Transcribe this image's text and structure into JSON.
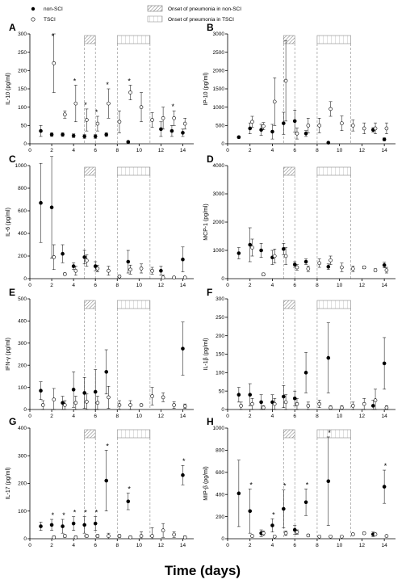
{
  "legend": {
    "regions": [
      "Onset of pneumonia in non-SCI",
      "Onset of pneumonia in TSCI"
    ]
  },
  "xlabel": "Time (days)",
  "chart_data": [
    {
      "type": "scatter",
      "panel": "A",
      "ylabel": "IL-10 (pg/ml)",
      "xlim": [
        0,
        15
      ],
      "xticks": [
        0,
        2,
        4,
        6,
        8,
        10,
        12,
        14
      ],
      "ylim": [
        0,
        300
      ],
      "yticks": [
        0,
        50,
        100,
        150,
        200,
        250,
        300
      ],
      "onset": [
        [
          5,
          6
        ],
        [
          8,
          11
        ]
      ],
      "significance": {
        "label": "*",
        "x": [
          2,
          4,
          5,
          6,
          7,
          9,
          13
        ]
      },
      "series": [
        {
          "name": "non-SCI",
          "color": "#000000",
          "filled": true,
          "x": [
            1,
            2,
            3,
            4,
            5,
            6,
            7,
            9,
            12,
            13,
            14
          ],
          "values": [
            35,
            25,
            25,
            22,
            20,
            20,
            25,
            5,
            40,
            35,
            30
          ],
          "errors": [
            15,
            5,
            5,
            5,
            5,
            5,
            5,
            3,
            20,
            15,
            10
          ]
        },
        {
          "name": "TSCI",
          "color": "#000000",
          "filled": false,
          "x": [
            2.2,
            3.2,
            4.2,
            5.2,
            6.2,
            7.2,
            8.2,
            9.2,
            10.2,
            11.2,
            12.2,
            13.2,
            14.2
          ],
          "values": [
            220,
            80,
            110,
            65,
            55,
            110,
            60,
            140,
            100,
            65,
            70,
            70,
            55
          ],
          "errors": [
            80,
            10,
            50,
            30,
            20,
            40,
            30,
            20,
            40,
            20,
            30,
            20,
            15
          ]
        }
      ]
    },
    {
      "type": "scatter",
      "panel": "B",
      "ylabel": "IP-10 (pg/ml)",
      "xlim": [
        0,
        15
      ],
      "xticks": [
        0,
        2,
        4,
        6,
        8,
        10,
        12,
        14
      ],
      "ylim": [
        0,
        3000
      ],
      "yticks": [
        0,
        500,
        1000,
        1500,
        2000,
        2500,
        3000
      ],
      "onset": [
        [
          5,
          6
        ],
        [
          8,
          11
        ]
      ],
      "significance": {
        "label": "*",
        "x": []
      },
      "series": [
        {
          "color": "#000000",
          "filled": true,
          "x": [
            1,
            2,
            3,
            4,
            5,
            6,
            7,
            9,
            13,
            14
          ],
          "values": [
            180,
            420,
            380,
            330,
            560,
            620,
            280,
            30,
            380,
            120
          ],
          "errors": [
            30,
            150,
            150,
            200,
            300,
            300,
            80,
            10,
            60,
            40
          ]
        },
        {
          "color": "#000000",
          "filled": false,
          "x": [
            2.2,
            3.2,
            4.2,
            5.2,
            6.2,
            7.2,
            8.2,
            9.2,
            10.2,
            11.2,
            12.2,
            13.2,
            14.2
          ],
          "values": [
            600,
            480,
            1150,
            1720,
            280,
            500,
            500,
            950,
            560,
            500,
            420,
            420,
            420
          ],
          "errors": [
            150,
            100,
            650,
            1100,
            150,
            200,
            200,
            200,
            200,
            150,
            150,
            150,
            150
          ]
        }
      ]
    },
    {
      "type": "scatter",
      "panel": "C",
      "ylabel": "IL-6 (pg/ml)",
      "xlim": [
        0,
        15
      ],
      "xticks": [
        0,
        2,
        4,
        6,
        8,
        10,
        12,
        14
      ],
      "ylim": [
        0,
        1000
      ],
      "yticks": [
        0,
        200,
        400,
        600,
        800,
        1000
      ],
      "onset": [
        [
          5,
          6
        ],
        [
          8,
          11
        ]
      ],
      "significance": {
        "label": "*",
        "x": []
      },
      "series": [
        {
          "color": "#000000",
          "filled": true,
          "x": [
            1,
            2,
            3,
            4,
            5,
            6,
            9,
            12,
            14
          ],
          "values": [
            670,
            630,
            220,
            110,
            190,
            110,
            150,
            70,
            170
          ],
          "errors": [
            350,
            450,
            80,
            30,
            60,
            40,
            100,
            40,
            110
          ]
        },
        {
          "color": "#000000",
          "filled": false,
          "x": [
            2.2,
            3.2,
            4.2,
            5.2,
            6.2,
            7.2,
            8.2,
            9.2,
            10.2,
            11.2,
            12.2,
            13.2,
            14.2
          ],
          "values": [
            190,
            40,
            70,
            160,
            90,
            70,
            20,
            80,
            90,
            70,
            10,
            10,
            10
          ],
          "errors": [
            110,
            10,
            40,
            50,
            30,
            40,
            10,
            40,
            40,
            30,
            20,
            10,
            10
          ]
        }
      ]
    },
    {
      "type": "scatter",
      "panel": "D",
      "ylabel": "MCP-1 (pg/ml)",
      "xlim": [
        0,
        15
      ],
      "xticks": [
        0,
        2,
        4,
        6,
        8,
        10,
        12,
        14
      ],
      "ylim": [
        0,
        4000
      ],
      "yticks": [
        0,
        1000,
        2000,
        3000,
        4000
      ],
      "onset": [
        [
          5,
          6
        ],
        [
          8,
          11
        ]
      ],
      "significance": {
        "label": "*",
        "x": []
      },
      "series": [
        {
          "color": "#000000",
          "filled": true,
          "x": [
            1,
            2,
            3,
            4,
            5,
            6,
            7,
            9,
            14
          ],
          "values": [
            900,
            1200,
            1000,
            750,
            1050,
            500,
            600,
            420,
            480
          ],
          "errors": [
            200,
            600,
            250,
            250,
            200,
            100,
            100,
            100,
            100
          ]
        },
        {
          "color": "#000000",
          "filled": false,
          "x": [
            2.2,
            3.2,
            4.2,
            5.2,
            6.2,
            7.2,
            8.2,
            9.2,
            10.2,
            11.2,
            12.2,
            13.2,
            14.2
          ],
          "values": [
            1100,
            150,
            800,
            800,
            400,
            350,
            550,
            650,
            400,
            350,
            400,
            300,
            300
          ],
          "errors": [
            300,
            50,
            250,
            300,
            100,
            100,
            150,
            150,
            150,
            100,
            50,
            50,
            100
          ]
        }
      ]
    },
    {
      "type": "scatter",
      "panel": "E",
      "ylabel": "IFN-γ (pg/ml)",
      "xlim": [
        0,
        15
      ],
      "xticks": [
        0,
        2,
        4,
        6,
        8,
        10,
        12,
        14
      ],
      "ylim": [
        0,
        500
      ],
      "yticks": [
        0,
        100,
        200,
        300,
        400,
        500
      ],
      "onset": [
        [
          5,
          6
        ],
        [
          8,
          11
        ]
      ],
      "significance": {
        "label": "*",
        "x": []
      },
      "series": [
        {
          "color": "#000000",
          "filled": true,
          "x": [
            1,
            3,
            4,
            5,
            6,
            7,
            14
          ],
          "values": [
            85,
            30,
            90,
            75,
            80,
            170,
            275
          ],
          "errors": [
            40,
            30,
            80,
            70,
            100,
            100,
            120
          ]
        },
        {
          "color": "#000000",
          "filled": false,
          "x": [
            1.2,
            2.2,
            3.2,
            4.2,
            5.2,
            6.2,
            7.2,
            8.2,
            9.2,
            10.2,
            11.2,
            12.2,
            13.2,
            14.2
          ],
          "values": [
            20,
            45,
            20,
            30,
            35,
            30,
            55,
            20,
            20,
            20,
            60,
            55,
            20,
            15
          ],
          "errors": [
            20,
            50,
            20,
            30,
            35,
            30,
            50,
            20,
            20,
            5,
            40,
            20,
            15,
            10
          ]
        }
      ]
    },
    {
      "type": "scatter",
      "panel": "F",
      "ylabel": "IL-1β (pg/ml)",
      "xlim": [
        0,
        15
      ],
      "xticks": [
        0,
        2,
        4,
        6,
        8,
        10,
        12,
        14
      ],
      "ylim": [
        0,
        300
      ],
      "yticks": [
        0,
        50,
        100,
        150,
        200,
        250,
        300
      ],
      "onset": [
        [
          5,
          6
        ],
        [
          8,
          11
        ]
      ],
      "significance": {
        "label": "*",
        "x": []
      },
      "series": [
        {
          "color": "#000000",
          "filled": true,
          "x": [
            1,
            2,
            3,
            4,
            5,
            6,
            7,
            9,
            13,
            14
          ],
          "values": [
            40,
            40,
            20,
            20,
            35,
            30,
            100,
            140,
            10,
            125
          ],
          "errors": [
            20,
            30,
            20,
            20,
            30,
            20,
            55,
            95,
            15,
            70
          ]
        },
        {
          "color": "#000000",
          "filled": false,
          "x": [
            1.2,
            2.2,
            3.2,
            4.2,
            5.2,
            6.2,
            7.2,
            8.2,
            9.2,
            10.2,
            11.2,
            12.2,
            13.2,
            14.2
          ],
          "values": [
            10,
            15,
            5,
            15,
            20,
            15,
            10,
            15,
            5,
            5,
            10,
            15,
            25,
            5
          ],
          "errors": [
            10,
            15,
            5,
            15,
            20,
            15,
            10,
            10,
            5,
            5,
            10,
            15,
            30,
            5
          ]
        }
      ]
    },
    {
      "type": "scatter",
      "panel": "G",
      "ylabel": "IL-17 (pg/ml)",
      "xlim": [
        0,
        15
      ],
      "xticks": [
        0,
        2,
        4,
        6,
        8,
        10,
        12,
        14
      ],
      "ylim": [
        0,
        400
      ],
      "yticks": [
        0,
        100,
        200,
        300,
        400
      ],
      "onset": [
        [
          5,
          6
        ],
        [
          8,
          11
        ]
      ],
      "significance": {
        "label": "*",
        "x": [
          2,
          3,
          4,
          5,
          6,
          7,
          9,
          14
        ]
      },
      "series": [
        {
          "color": "#000000",
          "filled": true,
          "x": [
            1,
            2,
            3,
            4,
            5,
            6,
            7,
            9,
            14
          ],
          "values": [
            45,
            50,
            45,
            55,
            50,
            55,
            210,
            135,
            230
          ],
          "errors": [
            15,
            20,
            25,
            25,
            30,
            25,
            110,
            30,
            35
          ]
        },
        {
          "color": "#000000",
          "filled": false,
          "x": [
            2.2,
            3.2,
            4.2,
            5.2,
            6.2,
            7.2,
            8.2,
            9.2,
            10.2,
            11.2,
            12.2,
            13.2,
            14.2
          ],
          "values": [
            5,
            10,
            5,
            10,
            10,
            10,
            10,
            5,
            10,
            10,
            30,
            15,
            5
          ],
          "errors": [
            5,
            5,
            5,
            5,
            5,
            10,
            5,
            5,
            15,
            30,
            25,
            10,
            5
          ]
        }
      ]
    },
    {
      "type": "scatter",
      "panel": "H",
      "ylabel": "MIP-β (pg/ml)",
      "xlim": [
        0,
        15
      ],
      "xticks": [
        0,
        2,
        4,
        6,
        8,
        10,
        12,
        14
      ],
      "ylim": [
        0,
        1000
      ],
      "yticks": [
        0,
        200,
        400,
        600,
        800,
        1000
      ],
      "onset": [
        [
          5,
          6
        ],
        [
          8,
          11
        ]
      ],
      "significance": {
        "label": "*",
        "x": [
          2,
          4,
          5,
          7,
          9,
          14
        ]
      },
      "series": [
        {
          "color": "#000000",
          "filled": true,
          "x": [
            1,
            2,
            3,
            4,
            5,
            6,
            7,
            9,
            13,
            14
          ],
          "values": [
            410,
            250,
            50,
            120,
            270,
            80,
            330,
            520,
            40,
            470
          ],
          "errors": [
            300,
            200,
            30,
            60,
            170,
            40,
            120,
            400,
            20,
            150
          ]
        },
        {
          "color": "#000000",
          "filled": false,
          "x": [
            2.2,
            3.2,
            4.2,
            5.2,
            6.2,
            7.2,
            8.2,
            9.2,
            10.2,
            11.2,
            12.2,
            13.2,
            14.2
          ],
          "values": [
            25,
            50,
            20,
            50,
            60,
            30,
            20,
            20,
            20,
            40,
            50,
            40,
            25
          ],
          "errors": [
            10,
            20,
            10,
            20,
            20,
            10,
            5,
            5,
            5,
            10,
            10,
            10,
            5
          ]
        }
      ]
    }
  ]
}
